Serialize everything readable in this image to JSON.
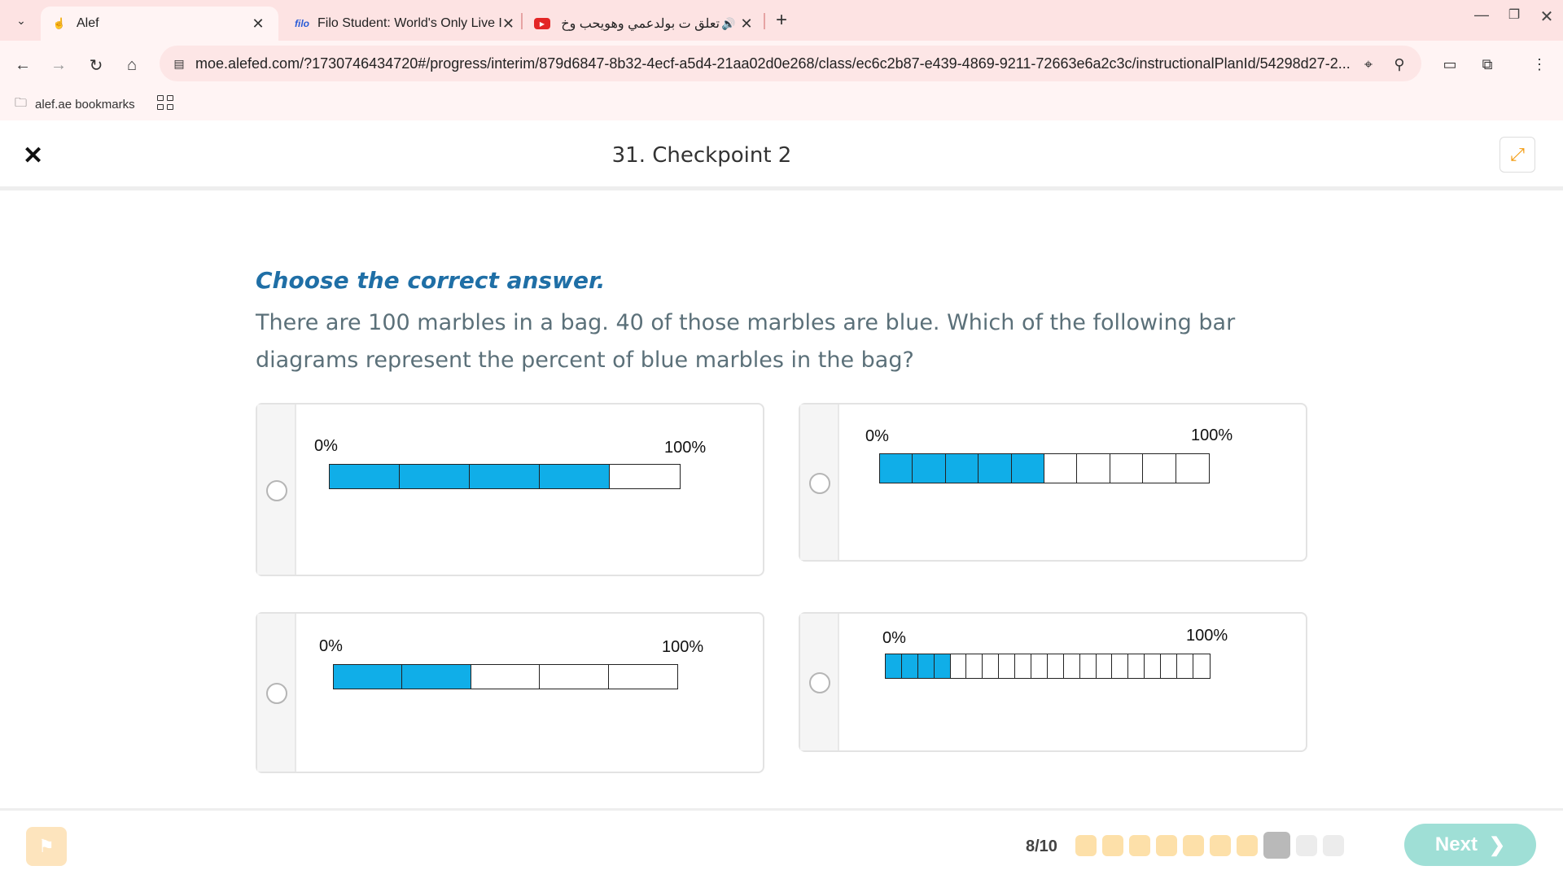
{
  "browser": {
    "tabs": [
      {
        "title": "Alef",
        "icon": "hand-pointer-icon"
      },
      {
        "prefix": "filo",
        "title": "Filo Student: World's Only Live I"
      },
      {
        "title": "تعلق ت بولدعمي وهويحب وخ"
      }
    ],
    "url": "moe.alefed.com/?1730746434720#/progress/interim/879d6847-8b32-4ecf-a5d4-21aa02d0e268/class/ec6c2b87-e439-4869-9211-72663e6a2c3c/instructionalPlanId/54298d27-2...",
    "bookmark": "alef.ae bookmarks"
  },
  "header": {
    "title": "31. Checkpoint 2"
  },
  "question": {
    "prompt": "Choose the correct answer.",
    "text": "There are 100 marbles in a bag. 40 of those marbles are blue. Which of the following bar diagrams represent the percent of blue marbles in the bag?"
  },
  "options": [
    {
      "min_label": "0%",
      "max_label": "100%",
      "segments": 5,
      "filled": 4
    },
    {
      "min_label": "0%",
      "max_label": "100%",
      "segments": 10,
      "filled": 5
    },
    {
      "min_label": "0%",
      "max_label": "100%",
      "segments": 5,
      "filled": 2
    },
    {
      "min_label": "0%",
      "max_label": "100%",
      "segments": 20,
      "filled": 4
    }
  ],
  "colors": {
    "fill": "#10aee8",
    "next_button": "#9fdfd6",
    "prompt": "#1f6fa6"
  },
  "footer": {
    "progress": "8/10",
    "progress_current": 8,
    "progress_total": 10,
    "next_label": "Next"
  }
}
